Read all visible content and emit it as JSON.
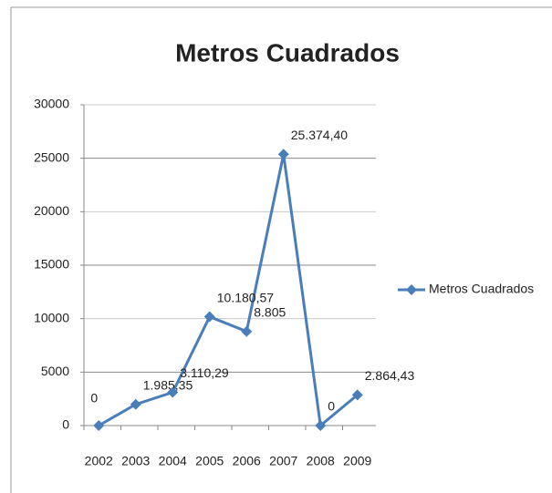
{
  "chart_data": {
    "type": "line",
    "title": "Metros Cuadrados",
    "categories": [
      "2002",
      "2003",
      "2004",
      "2005",
      "2006",
      "2007",
      "2008",
      "2009"
    ],
    "series": [
      {
        "name": "Metros Cuadrados",
        "color": "#4a7ebb",
        "values": [
          0,
          1985.35,
          3110.29,
          10180.57,
          8805,
          25374.4,
          0,
          2864.43
        ],
        "value_labels": [
          "0",
          "1.985,35",
          "3.110,29",
          "10.180,57",
          "8.805",
          "25.374,40",
          "0",
          "2.864,43"
        ]
      }
    ],
    "ylim": [
      0,
      30000
    ],
    "yticks": [
      0,
      5000,
      10000,
      15000,
      20000,
      25000,
      30000
    ],
    "grid": true,
    "legend": "right"
  }
}
